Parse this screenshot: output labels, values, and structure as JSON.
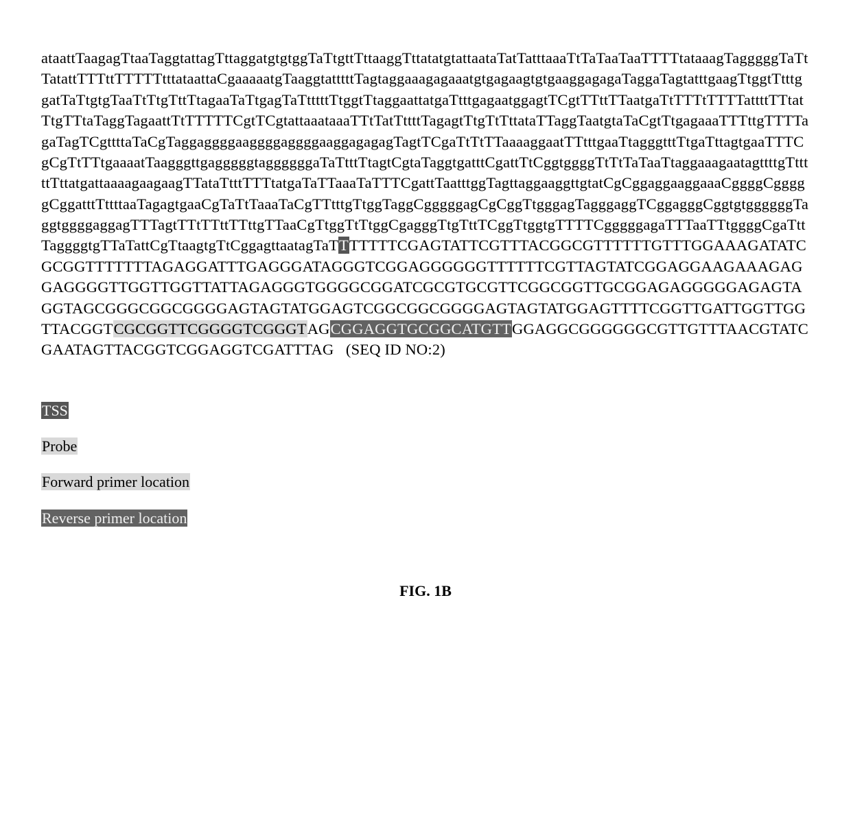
{
  "sequence_block": {
    "segments": [
      {
        "text": "ataattTaagagTtaaTaggtattagTttaggatgtgtggTaTtgttTttaaggTttatatgtattaataTatTatttaaaTtTaTaaTaaTTTTtataaagTagggggTaTtTatattTTTttTTTTTtttataatta",
        "style": "none"
      },
      {
        "text": "C",
        "style": "none"
      },
      {
        "text": "gaaaaatgTaaggtatttttTagtaggaaagagaaatgtgagaagtgtgaaggagagaTaggaTagtatttgaagTtggtTtttggatTaTtgtgTaaTtTtgTttTtagaaTaTtgagTaTtttttTtggtTtaggaattatgaTtttgagaatggagtT",
        "style": "none"
      },
      {
        "text": "C",
        "style": "none"
      },
      {
        "text": "gtTTttTTaatgaTtTTTtTTTTattttTTtatTtgTTtaTaggTagaattTtTTTTT",
        "style": "none"
      },
      {
        "text": "C",
        "style": "none"
      },
      {
        "text": "gtT",
        "style": "none"
      },
      {
        "text": "C",
        "style": "none"
      },
      {
        "text": "gtattaaataaaTTtTatTttttTagagtTtgTtTttataTTaggTaatgtaTa",
        "style": "none"
      },
      {
        "text": "C",
        "style": "none"
      },
      {
        "text": "gtTtgagaaaTTTttgTTTTagaTagT",
        "style": "none"
      },
      {
        "text": "C",
        "style": "none"
      },
      {
        "text": "gttttaTa",
        "style": "none"
      },
      {
        "text": "C",
        "style": "none"
      },
      {
        "text": "gTaggaggggaaggggaggggaaggagagagTagtT",
        "style": "none"
      },
      {
        "text": "C",
        "style": "none"
      },
      {
        "text": "gaTtTtTTaaaaggaatTTtttgaaTtagggtttTtgaTttagtgaaTTT",
        "style": "none"
      },
      {
        "text": "C",
        "style": "none"
      },
      {
        "text": "g",
        "style": "none"
      },
      {
        "text": "C",
        "style": "none"
      },
      {
        "text": "gTtTTtgaaaatTaagggttgagggggtaggggggaTaTtttTtagt",
        "style": "none"
      },
      {
        "text": "C",
        "style": "none"
      },
      {
        "text": "gtaTaggtgatttCgattTtCggtggggTtTtTaTaaTtaggaaagaatagttttgTtttttTttatgattaaaagaagaagTTataTtttTTTtatgaTaTTaaaTaTTT",
        "style": "none"
      },
      {
        "text": "C",
        "style": "none"
      },
      {
        "text": "gattTaatttggTagttaggaaggttgtat",
        "style": "none"
      },
      {
        "text": "C",
        "style": "none"
      },
      {
        "text": "g",
        "style": "none"
      },
      {
        "text": "C",
        "style": "none"
      },
      {
        "text": "ggaggaaggaaa",
        "style": "none"
      },
      {
        "text": "C",
        "style": "none"
      },
      {
        "text": "gggg",
        "style": "none"
      },
      {
        "text": "C",
        "style": "none"
      },
      {
        "text": "ggggg",
        "style": "none"
      },
      {
        "text": "C",
        "style": "none"
      },
      {
        "text": "ggatttTttttaaTagagtgaa",
        "style": "none"
      },
      {
        "text": "C",
        "style": "none"
      },
      {
        "text": "gTaTtTaaaTa",
        "style": "none"
      },
      {
        "text": "C",
        "style": "none"
      },
      {
        "text": "gTTtttgTtggTagg",
        "style": "none"
      },
      {
        "text": "C",
        "style": "none"
      },
      {
        "text": "gggggag",
        "style": "none"
      },
      {
        "text": "C",
        "style": "none"
      },
      {
        "text": "g",
        "style": "none"
      },
      {
        "text": "C",
        "style": "none"
      },
      {
        "text": "ggTtgggagTagggaggT",
        "style": "none"
      },
      {
        "text": "C",
        "style": "none"
      },
      {
        "text": "ggaggg",
        "style": "none"
      },
      {
        "text": "C",
        "style": "none"
      },
      {
        "text": "ggtgtggggggTaggtggggaggagTTTagtTTtTTttTTttgTTaa",
        "style": "none"
      },
      {
        "text": "C",
        "style": "none"
      },
      {
        "text": "gTtggTtTtgg",
        "style": "none"
      },
      {
        "text": "C",
        "style": "none"
      },
      {
        "text": "gagggTtgTttTCggTtggtgTTTTCgggggagaTTTaaTTtgggg",
        "style": "none"
      },
      {
        "text": "C",
        "style": "none"
      },
      {
        "text": "gaTttTaggggtgTTaTatt",
        "style": "none"
      },
      {
        "text": "C",
        "style": "none"
      },
      {
        "text": "gTtaagtgTt",
        "style": "none"
      },
      {
        "text": "C",
        "style": "none"
      },
      {
        "text": "ggagttaatagTaT",
        "style": "none"
      },
      {
        "text": "T",
        "style": "tss"
      },
      {
        "text": "TTTTTCGAGTATTCGTTTACGGCGTTTTTTGTTTGGAAAGATATCGCGGTTTTTTTAGAGGATTTGAGGGATAGGGTCGGAGGGGGGTTTTTTCGTTAGTATCGGAGGAAGAAAGAGGAGGGGTTGGTTGGTTATTAGAGGGTGGGGCGGATCGCGTGCGTTCGGCGGTTGCGGAGAGGGGGAGAGTAGGTAGCGGGCGGCGGGGAGTAGTATGGAGTCGGCGGCGGGGAGTAGTATGGAGTTTTCGGTTGATTGGTTGGTTACGGT",
        "style": "none"
      },
      {
        "text": "CGCGGTTCGGGGTCGGGT",
        "style": "forward"
      },
      {
        "text": "AG",
        "style": "none"
      },
      {
        "text": "CGGAGGTGCGGCATGTT",
        "style": "reverse"
      },
      {
        "text": "GGAGGCGGGGGGCGTTGTTTAACGTATCGAATAGTTACGGTCGGAGGTCGATTTAG   ",
        "style": "none"
      },
      {
        "text": "(SEQ ID NO:2)",
        "style": "seqid"
      }
    ]
  },
  "legend": {
    "tss": "TSS",
    "probe": "Probe",
    "forward": "Forward primer location",
    "reverse": "Reverse primer location"
  },
  "figure_label": "FIG. 1B"
}
